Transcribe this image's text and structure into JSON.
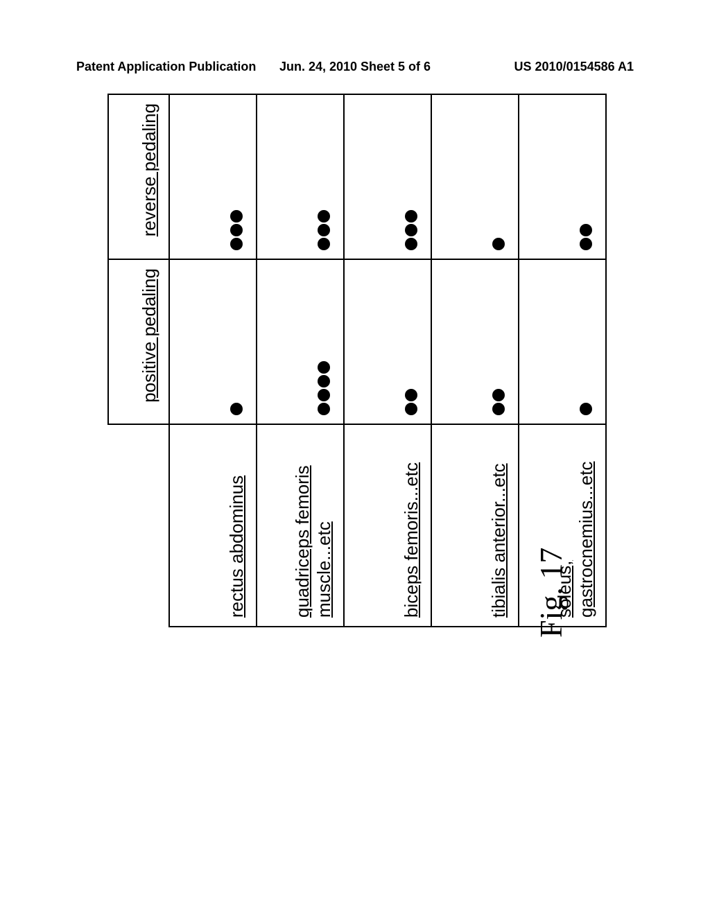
{
  "page_header": {
    "left": "Patent Application Publication",
    "center": "Jun. 24, 2010  Sheet 5 of 6",
    "right": "US 2010/0154586 A1"
  },
  "figure_caption": "Fig. 17",
  "table": {
    "columns": [
      "",
      "positive pedaling",
      "reverse pedaling"
    ],
    "rows": [
      {
        "label": "rectus abdominus",
        "positive": 1,
        "reverse": 3
      },
      {
        "label": "quadriceps femoris muscle...etc",
        "positive": 4,
        "reverse": 3
      },
      {
        "label": "biceps femoris...etc",
        "positive": 2,
        "reverse": 3
      },
      {
        "label": "tibialis anterior...etc",
        "positive": 2,
        "reverse": 1
      },
      {
        "label": "soleus, gastrocnemius...etc",
        "positive": 1,
        "reverse": 2
      }
    ]
  },
  "style": {
    "dot_color": "#000000",
    "border_color": "#000000",
    "background_color": "#ffffff",
    "label_fontsize": 26,
    "header_fontsize": 18,
    "caption_fontsize": 46
  }
}
